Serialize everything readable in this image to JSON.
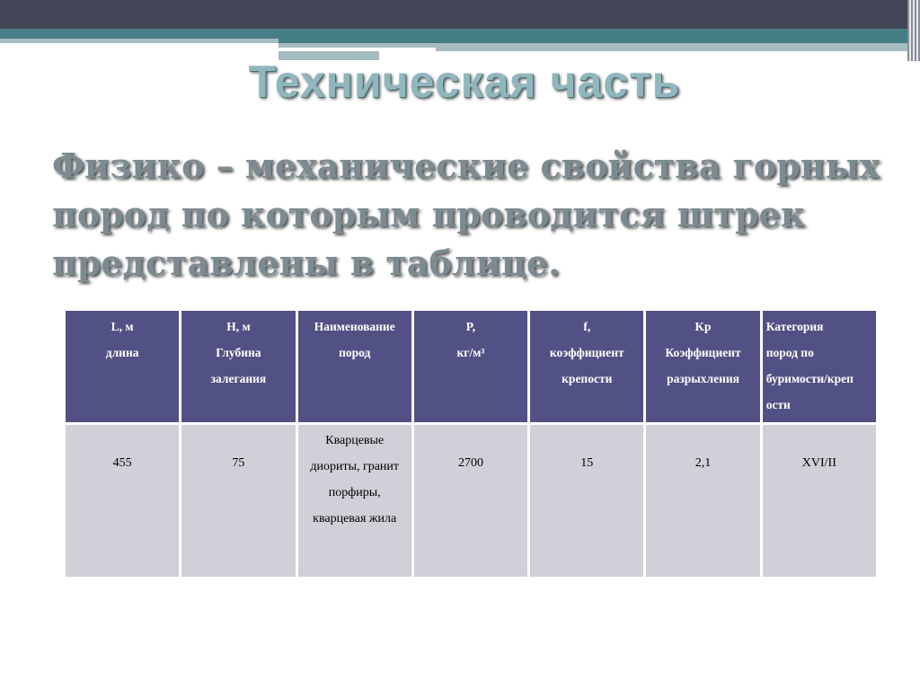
{
  "title": "Техническая часть",
  "subtitle": "Физико – механические свойства горных пород по которым проводится штрек представлены в таблице.",
  "table": {
    "headers": [
      [
        "L, м",
        "длина"
      ],
      [
        "H, м",
        "Глубина",
        "залегания"
      ],
      [
        "Наименование",
        "пород"
      ],
      [
        "P,",
        "кг/м³"
      ],
      [
        "f,",
        "коэффициент",
        "крепости"
      ],
      [
        "Kp",
        "Коэффициент",
        "разрыхления"
      ],
      [
        "Категория",
        "пород по",
        "буримости/креп",
        "ости"
      ]
    ],
    "row": [
      "455",
      "75",
      [
        "Кварцевые",
        "диориты, гранит",
        "порфиры,",
        "кварцевая жила"
      ],
      "2700",
      "15",
      "2,1",
      "XVI/II"
    ]
  },
  "colors": {
    "header_bg": "#515185",
    "cell_bg": "#d0d0d8",
    "top_band": "#434656",
    "accent": "#457e84"
  }
}
